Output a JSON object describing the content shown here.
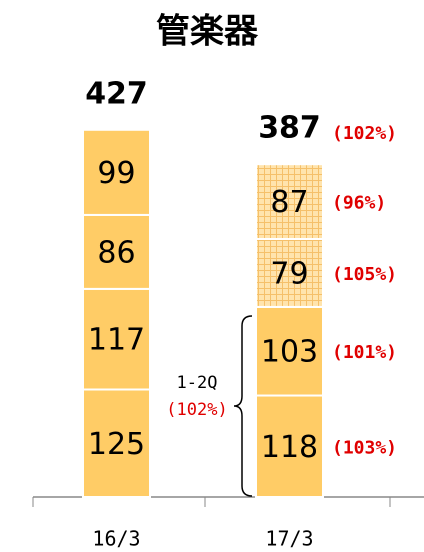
{
  "chart_data": {
    "type": "stacked_bar",
    "title": "管楽器",
    "categories": [
      "16/3",
      "17/3"
    ],
    "series": [
      {
        "color": "#ffcc66",
        "hatched": [
          false,
          false
        ],
        "values": [
          125,
          118
        ],
        "change_labels": [
          null,
          "(103%)"
        ]
      },
      {
        "color": "#ffcc66",
        "hatched": [
          false,
          false
        ],
        "values": [
          117,
          103
        ],
        "change_labels": [
          null,
          "(101%)"
        ]
      },
      {
        "color": "#ffcc66",
        "hatched": [
          false,
          true
        ],
        "values": [
          86,
          79
        ],
        "change_labels": [
          null,
          "(105%)"
        ]
      },
      {
        "color": "#ffcc66",
        "hatched": [
          false,
          true
        ],
        "values": [
          99,
          87
        ],
        "change_labels": [
          null,
          "(96%)"
        ]
      }
    ],
    "totals": [
      427,
      387
    ],
    "total_change_labels": [
      null,
      "(102%)"
    ],
    "annotation": {
      "text": "1-2Q",
      "change": "(102%)"
    }
  }
}
